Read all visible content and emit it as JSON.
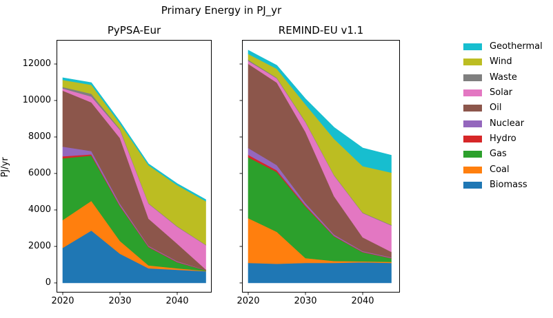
{
  "figure": {
    "title": "Primary Energy in PJ_yr",
    "ylabel": "PJ/yr"
  },
  "legend": {
    "entries": [
      {
        "label": "Geothermal",
        "color": "#17becf"
      },
      {
        "label": "Wind",
        "color": "#bcbd22"
      },
      {
        "label": "Waste",
        "color": "#7f7f7f"
      },
      {
        "label": "Solar",
        "color": "#e377c2"
      },
      {
        "label": "Oil",
        "color": "#8c564b"
      },
      {
        "label": "Nuclear",
        "color": "#9467bd"
      },
      {
        "label": "Hydro",
        "color": "#d62728"
      },
      {
        "label": "Gas",
        "color": "#2ca02c"
      },
      {
        "label": "Coal",
        "color": "#ff7f0e"
      },
      {
        "label": "Biomass",
        "color": "#1f77b4"
      }
    ]
  },
  "chart_data": [
    {
      "type": "area",
      "stacked": true,
      "title": "PyPSA-Eur",
      "xlabel": "",
      "ylabel": "PJ/yr",
      "x": [
        2020,
        2025,
        2030,
        2035,
        2040,
        2045
      ],
      "xtick_labels": [
        "2020",
        "2030",
        "2040"
      ],
      "xticks": [
        2020,
        2030,
        2040
      ],
      "yticks": [
        0,
        2000,
        4000,
        6000,
        8000,
        10000,
        12000
      ],
      "ylim": [
        0,
        13320
      ],
      "grid": false,
      "series": [
        {
          "name": "Biomass",
          "color": "#1f77b4",
          "values": [
            1925,
            2870,
            1600,
            800,
            720,
            640
          ]
        },
        {
          "name": "Coal",
          "color": "#ff7f0e",
          "values": [
            1525,
            1630,
            700,
            160,
            80,
            20
          ]
        },
        {
          "name": "Gas",
          "color": "#2ca02c",
          "values": [
            3380,
            2480,
            1900,
            1000,
            330,
            30
          ]
        },
        {
          "name": "Hydro",
          "color": "#d62728",
          "values": [
            110,
            70,
            40,
            30,
            20,
            10
          ]
        },
        {
          "name": "Nuclear",
          "color": "#9467bd",
          "values": [
            530,
            180,
            100,
            40,
            40,
            10
          ]
        },
        {
          "name": "Oil",
          "color": "#8c564b",
          "values": [
            3070,
            2670,
            3600,
            1490,
            960,
            30
          ]
        },
        {
          "name": "Solar",
          "color": "#e377c2",
          "values": [
            120,
            320,
            450,
            820,
            930,
            1330
          ]
        },
        {
          "name": "Waste",
          "color": "#7f7f7f",
          "values": [
            80,
            150,
            50,
            30,
            30,
            20
          ]
        },
        {
          "name": "Wind",
          "color": "#bcbd22",
          "values": [
            390,
            490,
            300,
            2080,
            2250,
            2390
          ]
        },
        {
          "name": "Geothermal",
          "color": "#17becf",
          "values": [
            120,
            120,
            110,
            80,
            90,
            90
          ]
        }
      ]
    },
    {
      "type": "area",
      "stacked": true,
      "title": "REMIND-EU v1.1",
      "xlabel": "",
      "ylabel": "PJ/yr",
      "x": [
        2020,
        2025,
        2030,
        2035,
        2040,
        2045
      ],
      "xtick_labels": [
        "2020",
        "2030",
        "2040"
      ],
      "xticks": [
        2020,
        2030,
        2040
      ],
      "yticks": [
        0,
        2000,
        4000,
        6000,
        8000,
        10000,
        12000
      ],
      "ylim": [
        0,
        13320
      ],
      "grid": false,
      "series": [
        {
          "name": "Biomass",
          "color": "#1f77b4",
          "values": [
            1100,
            1050,
            1100,
            1100,
            1130,
            1100
          ]
        },
        {
          "name": "Coal",
          "color": "#ff7f0e",
          "values": [
            2450,
            1750,
            260,
            100,
            50,
            50
          ]
        },
        {
          "name": "Gas",
          "color": "#2ca02c",
          "values": [
            3340,
            3275,
            2830,
            1350,
            500,
            200
          ]
        },
        {
          "name": "Hydro",
          "color": "#d62728",
          "values": [
            130,
            100,
            60,
            30,
            20,
            20
          ]
        },
        {
          "name": "Nuclear",
          "color": "#9467bd",
          "values": [
            380,
            280,
            130,
            70,
            40,
            30
          ]
        },
        {
          "name": "Oil",
          "color": "#8c564b",
          "values": [
            4610,
            4525,
            3900,
            2100,
            760,
            300
          ]
        },
        {
          "name": "Solar",
          "color": "#e377c2",
          "values": [
            165,
            230,
            530,
            1140,
            1330,
            1450
          ]
        },
        {
          "name": "Waste",
          "color": "#7f7f7f",
          "values": [
            60,
            40,
            40,
            30,
            30,
            30
          ]
        },
        {
          "name": "Wind",
          "color": "#bcbd22",
          "values": [
            320,
            490,
            940,
            1980,
            2540,
            2870
          ]
        },
        {
          "name": "Geothermal",
          "color": "#17becf",
          "values": [
            205,
            190,
            310,
            630,
            1000,
            950
          ]
        }
      ]
    }
  ]
}
